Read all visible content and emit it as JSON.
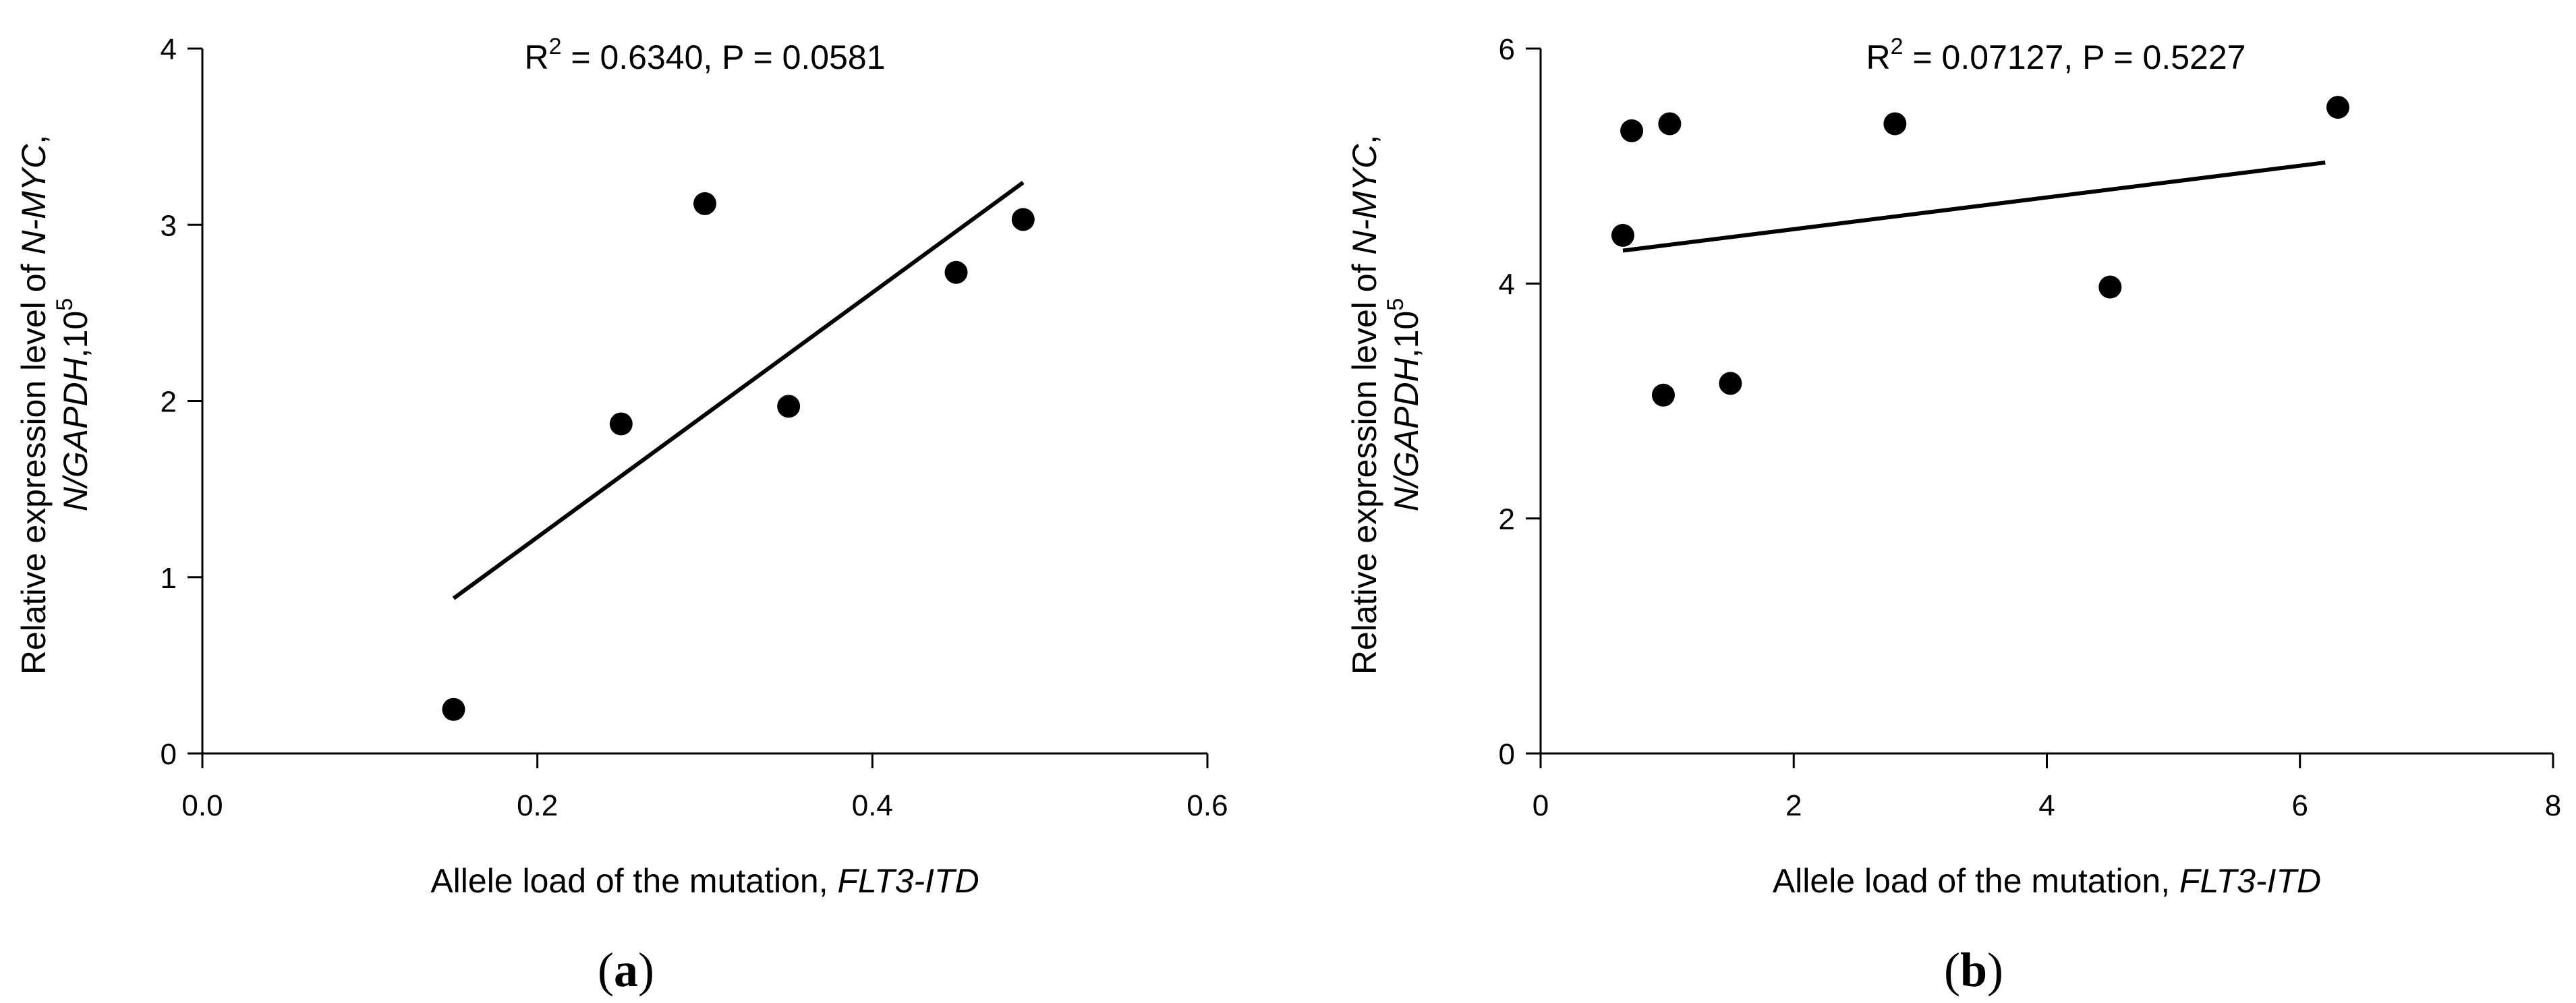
{
  "chart_data": [
    {
      "type": "scatter",
      "panel_label": {
        "open": "(",
        "letter": "a",
        "close": ")"
      },
      "stat": {
        "r_prefix": "R",
        "r_exp": "2",
        "r_value": " = 0.6340, P = 0.0581"
      },
      "xlabel": {
        "text": "Allele load of the mutation, ",
        "italic": "FLT3-ITD"
      },
      "ylabel": {
        "line1_text": "Relative expression level of ",
        "line1_italic": "N-MYC",
        "line1_tail": ",",
        "line2_italic": "N/GAPDH",
        "line2_text": ",10",
        "line2_exp": "5"
      },
      "xlim": [
        0.0,
        0.6
      ],
      "ylim": [
        0,
        4
      ],
      "xticks": [
        "0.0",
        "0.2",
        "0.4",
        "0.6"
      ],
      "yticks": [
        "0",
        "1",
        "2",
        "3",
        "4"
      ],
      "points": [
        {
          "x": 0.15,
          "y": 0.25
        },
        {
          "x": 0.25,
          "y": 1.87
        },
        {
          "x": 0.3,
          "y": 3.12
        },
        {
          "x": 0.35,
          "y": 1.97
        },
        {
          "x": 0.45,
          "y": 2.73
        },
        {
          "x": 0.49,
          "y": 3.03
        }
      ],
      "fit_line": {
        "x": [
          0.15,
          0.49
        ],
        "y": [
          0.88,
          3.24
        ]
      }
    },
    {
      "type": "scatter",
      "panel_label": {
        "open": "(",
        "letter": "b",
        "close": ")"
      },
      "stat": {
        "r_prefix": "R",
        "r_exp": "2",
        "r_value": " = 0.07127, P = 0.5227"
      },
      "xlabel": {
        "text": "Allele load of the mutation, ",
        "italic": "FLT3-ITD"
      },
      "ylabel": {
        "line1_text": "Relative expression level of ",
        "line1_italic": "N-MYC",
        "line1_tail": ",",
        "line2_italic": "N/GAPDH",
        "line2_text": ",10",
        "line2_exp": "5"
      },
      "xlim": [
        0,
        8
      ],
      "ylim": [
        0,
        6
      ],
      "xticks": [
        "0",
        "2",
        "4",
        "6",
        "8"
      ],
      "yticks": [
        "0",
        "2",
        "4",
        "6"
      ],
      "points": [
        {
          "x": 0.65,
          "y": 4.41
        },
        {
          "x": 0.72,
          "y": 5.3
        },
        {
          "x": 0.97,
          "y": 3.05
        },
        {
          "x": 1.02,
          "y": 5.36
        },
        {
          "x": 1.5,
          "y": 3.15
        },
        {
          "x": 2.8,
          "y": 5.36
        },
        {
          "x": 4.5,
          "y": 3.97
        },
        {
          "x": 6.3,
          "y": 5.5
        }
      ],
      "fit_line": {
        "x": [
          0.65,
          6.2
        ],
        "y": [
          4.28,
          5.03
        ]
      }
    }
  ]
}
